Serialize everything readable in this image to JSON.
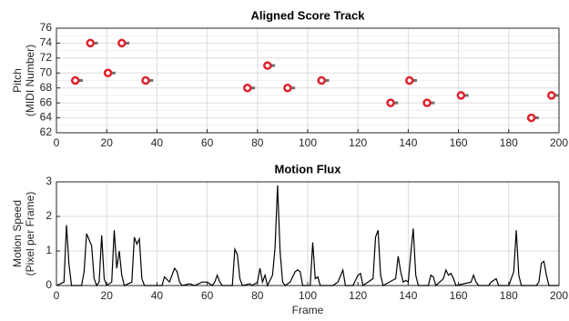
{
  "chart_data": [
    {
      "type": "scatter",
      "title": "Aligned Score Track",
      "ylabel": [
        "Pitch",
        "(MIDI Number)"
      ],
      "xlim": [
        0,
        200
      ],
      "xticks": [
        0,
        20,
        40,
        60,
        80,
        100,
        120,
        140,
        160,
        180,
        200
      ],
      "ylim": [
        62,
        76
      ],
      "yticks": [
        62,
        64,
        66,
        68,
        70,
        72,
        74,
        76
      ],
      "yminorticks": [
        63,
        65,
        67,
        69,
        71,
        73,
        75
      ],
      "grid": true,
      "series": [
        {
          "color": "#e0202a",
          "duration_color": "#707070",
          "x": [
            7.5,
            13.5,
            20.5,
            26,
            35.5,
            76,
            84,
            92,
            105.5,
            133,
            140.5,
            147.5,
            161,
            189,
            197
          ],
          "values": [
            69,
            74,
            70,
            74,
            69,
            68,
            71,
            68,
            69,
            66,
            69,
            66,
            67,
            64,
            67
          ],
          "durations": [
            3,
            3,
            3,
            3,
            3,
            3,
            3,
            3,
            3,
            3,
            3,
            3,
            3,
            3,
            3
          ]
        }
      ]
    },
    {
      "type": "line",
      "title": "Motion Flux",
      "xlabel": "Frame",
      "ylabel": [
        "Motion Speed",
        "(Pixel per Frame)"
      ],
      "xlim": [
        0,
        200
      ],
      "xticks": [
        0,
        20,
        40,
        60,
        80,
        100,
        120,
        140,
        160,
        180,
        200
      ],
      "ylim": [
        0,
        3
      ],
      "yticks": [
        0,
        1,
        2,
        3
      ],
      "grid": true,
      "series": [
        {
          "color": "#000000",
          "x": [
            0,
            3,
            4,
            5,
            6,
            10,
            11,
            12,
            14,
            15,
            16,
            17,
            18,
            19,
            20,
            22,
            23,
            24,
            25,
            26,
            27,
            30,
            31,
            32,
            33,
            34,
            35,
            42,
            43,
            45,
            47,
            48,
            49,
            50,
            53,
            55,
            58,
            60,
            62,
            63,
            64,
            65,
            66,
            70,
            71,
            72,
            73,
            74,
            77,
            78,
            80,
            81,
            82,
            83,
            84,
            86,
            87,
            88,
            89,
            90,
            91,
            93,
            95,
            96,
            97,
            98,
            101,
            102,
            103,
            104,
            105,
            110,
            112,
            114,
            115,
            118,
            120,
            121,
            122,
            126,
            127,
            128,
            129,
            130,
            135,
            136,
            137,
            138,
            139,
            140,
            141,
            142,
            143,
            144,
            148,
            149,
            150,
            151,
            154,
            155,
            156,
            157,
            158,
            159,
            165,
            166,
            167,
            168,
            172,
            173,
            175,
            176,
            180,
            182,
            183,
            184,
            185,
            191,
            192,
            193,
            194,
            195,
            196,
            200
          ],
          "values": [
            0,
            0.1,
            1.75,
            0.6,
            0,
            0,
            0.4,
            1.5,
            1.15,
            0.2,
            0,
            0.1,
            1.45,
            0.2,
            0,
            0.1,
            1.6,
            0.5,
            1.0,
            0.3,
            0,
            0.1,
            1.4,
            1.2,
            1.35,
            0.2,
            0,
            0,
            0.25,
            0.1,
            0.5,
            0.4,
            0.1,
            0,
            0.05,
            0,
            0.1,
            0.1,
            0,
            0.1,
            0.3,
            0.1,
            0,
            0,
            1.05,
            0.9,
            0.2,
            0,
            0.05,
            0,
            0.1,
            0.5,
            0.1,
            0.3,
            0,
            0.3,
            1.1,
            2.9,
            1.0,
            0.1,
            0,
            0.1,
            0.4,
            0.45,
            0.4,
            0,
            0,
            1.25,
            0.2,
            0.25,
            0,
            0,
            0.1,
            0.45,
            0,
            0,
            0.3,
            0.35,
            0,
            0.2,
            1.4,
            1.6,
            0.3,
            0,
            0.2,
            0.85,
            0.4,
            0.1,
            0.15,
            0.1,
            0.9,
            1.65,
            0.3,
            0,
            0,
            0.3,
            0.25,
            0,
            0.2,
            0.45,
            0.3,
            0.35,
            0.2,
            0,
            0.1,
            0.3,
            0.1,
            0,
            0,
            0.1,
            0.2,
            0,
            0,
            0.4,
            1.6,
            0.3,
            0,
            0,
            0.1,
            0.65,
            0.7,
            0.3,
            0,
            0
          ]
        }
      ]
    }
  ]
}
